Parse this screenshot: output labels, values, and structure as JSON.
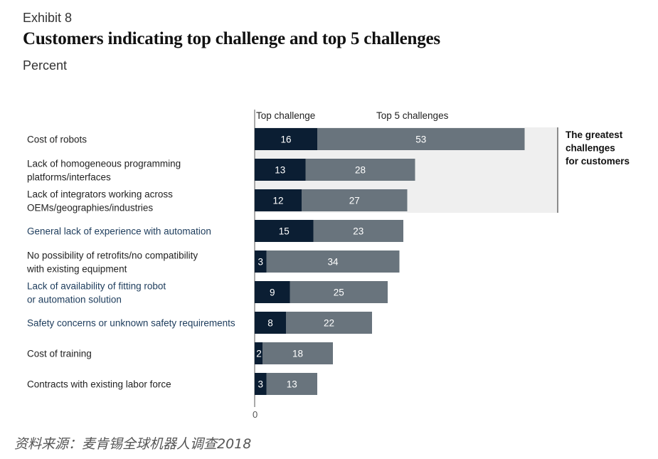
{
  "header": {
    "exhibit": "Exhibit 8",
    "title": "Customers indicating top challenge and top 5 challenges",
    "subtitle": "Percent"
  },
  "chart_data": {
    "type": "bar",
    "orientation": "horizontal",
    "stacked": true,
    "title": "Customers indicating top challenge and top 5 challenges",
    "unit": "Percent",
    "categories": [
      [
        "Cost of robots"
      ],
      [
        "Lack of homogeneous programming",
        "platforms/interfaces"
      ],
      [
        "Lack of integrators working across",
        "OEMs/geographies/industries"
      ],
      [
        "General lack of experience with automation"
      ],
      [
        "No possibility of retrofits/no compatibility",
        "with existing equipment"
      ],
      [
        "Lack of availability of fitting robot",
        "or automation solution"
      ],
      [
        "Safety concerns or unknown safety requirements"
      ],
      [
        "Cost of training"
      ],
      [
        "Contracts with existing labor force"
      ]
    ],
    "series": [
      {
        "name": "Top challenge",
        "color": "#0b1e33",
        "values": [
          16,
          13,
          12,
          15,
          3,
          9,
          8,
          2,
          3
        ]
      },
      {
        "name": "Top 5 challenges",
        "color": "#69747d",
        "values": [
          53,
          28,
          27,
          23,
          34,
          25,
          22,
          18,
          13
        ]
      }
    ],
    "xaxis_tick": "0",
    "highlight": {
      "label": [
        "The greatest",
        "challenges",
        "for customers"
      ],
      "rows": 3,
      "color": "#efefef"
    },
    "label_colors": {
      "default": "#222222",
      "accent": "#1d3c5c"
    },
    "accent_rows": [
      3,
      5,
      6
    ]
  },
  "footer": {
    "source": "资料来源：麦肯锡全球机器人调查2018"
  }
}
